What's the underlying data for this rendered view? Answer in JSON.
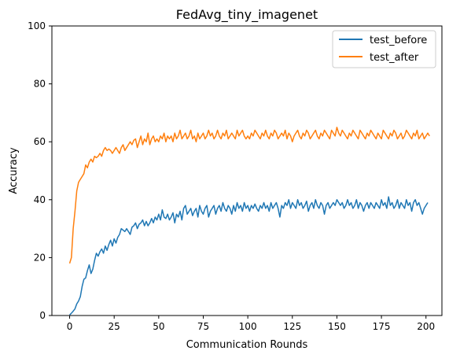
{
  "chart_data": {
    "type": "line",
    "title": "FedAvg_tiny_imagenet",
    "xlabel": "Communication Rounds",
    "ylabel": "Accuracy",
    "xlim": [
      -9.95,
      208.95
    ],
    "ylim": [
      0,
      100
    ],
    "xticks": [
      0,
      25,
      50,
      75,
      100,
      125,
      150,
      175,
      200
    ],
    "yticks": [
      0,
      20,
      40,
      60,
      80,
      100
    ],
    "legend_position": "top-right",
    "grid": false,
    "series": [
      {
        "name": "test_before",
        "color": "#1f77b4",
        "x_start": 0,
        "x_step": 1,
        "values": [
          0.2,
          0.8,
          1.5,
          2.3,
          4,
          5,
          6.5,
          10,
          12.5,
          13,
          15.5,
          17.5,
          14.5,
          16,
          19,
          21.5,
          20.5,
          22,
          23,
          21.5,
          24,
          22.5,
          24.5,
          26,
          24,
          26.5,
          25,
          27,
          28,
          30,
          29.5,
          29,
          30,
          29,
          28,
          30.5,
          31,
          32,
          30,
          31.5,
          32,
          33,
          31,
          32.5,
          31,
          32,
          33.5,
          32,
          34,
          33,
          35,
          33,
          36.5,
          34,
          33.5,
          35,
          33,
          34,
          35.5,
          32,
          35,
          34,
          36,
          33,
          37,
          38,
          35,
          36,
          37,
          34.5,
          36,
          37,
          34,
          38,
          36,
          35,
          37,
          38,
          34,
          36,
          37,
          38,
          35,
          37,
          38,
          36,
          39,
          37,
          36,
          38,
          37,
          35,
          38,
          36,
          39,
          37,
          38,
          36,
          39,
          37,
          38,
          36,
          38,
          37,
          38.5,
          37,
          36,
          38,
          37,
          39,
          37,
          38,
          36,
          39,
          37,
          38,
          39,
          37,
          34,
          38,
          37,
          39,
          38,
          40,
          37,
          39,
          38,
          37,
          40,
          38,
          39,
          37,
          38,
          39.5,
          36,
          38,
          39,
          37,
          40,
          38,
          37,
          39,
          38,
          35,
          38,
          39,
          37,
          38,
          39,
          38,
          40,
          39,
          38,
          39,
          37,
          38,
          40,
          38,
          39,
          37,
          38,
          40,
          37,
          39,
          38,
          36,
          38,
          39,
          37,
          39,
          38,
          37,
          39,
          38,
          37,
          40,
          38,
          39,
          37,
          41,
          38,
          39,
          37,
          38,
          40,
          37,
          39,
          38,
          37,
          40,
          38,
          39,
          36,
          39,
          40,
          38,
          39,
          37,
          35,
          37,
          38,
          39
        ]
      },
      {
        "name": "test_after",
        "color": "#ff7f0e",
        "x_start": 0,
        "x_step": 1,
        "values": [
          18,
          20,
          30,
          36,
          43,
          46,
          47,
          48,
          49,
          52,
          51,
          53,
          54,
          53,
          55,
          54.5,
          55,
          56,
          55,
          57,
          58,
          57,
          57.5,
          57,
          56,
          57,
          58,
          57,
          56,
          58,
          59,
          57,
          58,
          59,
          60,
          59,
          60.5,
          61,
          58,
          60,
          62,
          59,
          61,
          60,
          63,
          59,
          61,
          62,
          60,
          61,
          60,
          62,
          61,
          63,
          60,
          62,
          61,
          62,
          60,
          63,
          61,
          62,
          64,
          61,
          62,
          63,
          61,
          62,
          64,
          61,
          62,
          60,
          63,
          61,
          62,
          63,
          61,
          62,
          64,
          62,
          63,
          61,
          62,
          64,
          62,
          61,
          63,
          62,
          64,
          61,
          62,
          63,
          62,
          61,
          64,
          62,
          63,
          64,
          62,
          61,
          62,
          61,
          63,
          62,
          64,
          63,
          62,
          61,
          63,
          62,
          64,
          62,
          61,
          63,
          62,
          64,
          63,
          61,
          62,
          63,
          62,
          64,
          61,
          63,
          62,
          60,
          62,
          63,
          64,
          62,
          61,
          63,
          62,
          64,
          63,
          61,
          62,
          63,
          64,
          62,
          61,
          63,
          62,
          64,
          63,
          62,
          61,
          64,
          63,
          62,
          65,
          63,
          62,
          64,
          63,
          62,
          61,
          63,
          62,
          64,
          63,
          62,
          61,
          64,
          63,
          62,
          61,
          63,
          62,
          64,
          63,
          62,
          61,
          63,
          62,
          61,
          64,
          63,
          62,
          61,
          63,
          62,
          64,
          63,
          61,
          62,
          63,
          61,
          62,
          64,
          63,
          62,
          61,
          63,
          62,
          64,
          61,
          62,
          63,
          61,
          62,
          63,
          62
        ]
      }
    ]
  }
}
